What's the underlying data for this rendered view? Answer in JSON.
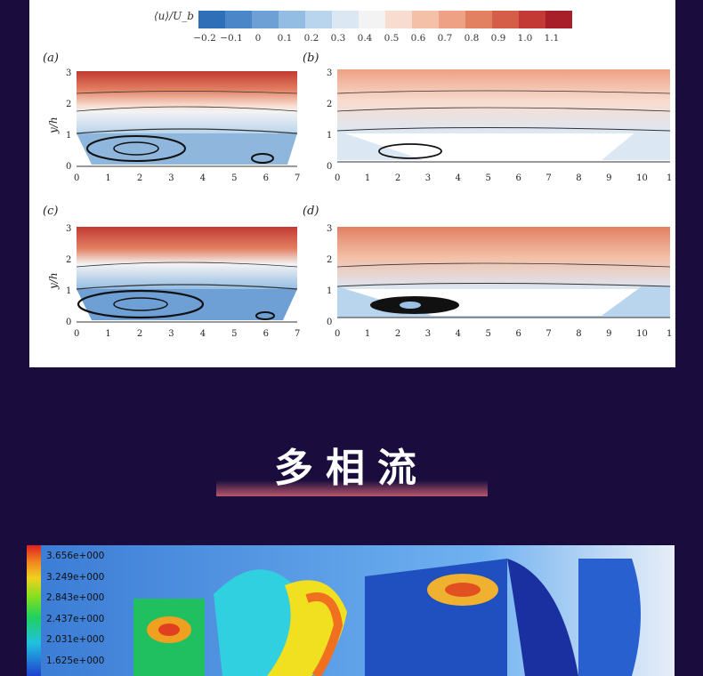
{
  "colorbar": {
    "label": "⟨u⟩/U_b",
    "ticks": [
      "−0.2",
      "−0.1",
      "0",
      "0.1",
      "0.2",
      "0.3",
      "0.4",
      "0.5",
      "0.6",
      "0.7",
      "0.8",
      "0.9",
      "1.0",
      "1.1"
    ],
    "colors": [
      "#2e6fb8",
      "#4a86c8",
      "#6ea0d6",
      "#94bde3",
      "#b9d5ed",
      "#dbe8f4",
      "#f3f3f3",
      "#f8dccf",
      "#f4c0a8",
      "#eea184",
      "#e28062",
      "#d45e48",
      "#c23a33",
      "#a81f2a"
    ]
  },
  "plots": [
    {
      "label": "(a)",
      "ylabel": "y/h",
      "xticks": [
        "0",
        "1",
        "2",
        "3",
        "4",
        "5",
        "6",
        "7"
      ],
      "yticks": [
        "0",
        "1",
        "2",
        "3"
      ]
    },
    {
      "label": "(b)",
      "ylabel": "",
      "xticks": [
        "0",
        "1",
        "2",
        "3",
        "4",
        "5",
        "6",
        "7",
        "8",
        "9",
        "10",
        "1"
      ],
      "yticks": [
        "0",
        "1",
        "2",
        "3"
      ]
    },
    {
      "label": "(c)",
      "ylabel": "y/h",
      "xticks": [
        "0",
        "1",
        "2",
        "3",
        "4",
        "5",
        "6",
        "7"
      ],
      "yticks": [
        "0",
        "1",
        "2",
        "3"
      ]
    },
    {
      "label": "(d)",
      "ylabel": "",
      "xticks": [
        "0",
        "1",
        "2",
        "3",
        "4",
        "5",
        "6",
        "7",
        "8",
        "9",
        "10",
        "1"
      ],
      "yticks": [
        "0",
        "1",
        "2",
        "3"
      ]
    }
  ],
  "section_title": "多相流",
  "legend_values": [
    "3.656e+000",
    "3.249e+000",
    "2.843e+000",
    "2.437e+000",
    "2.031e+000",
    "1.625e+000"
  ]
}
